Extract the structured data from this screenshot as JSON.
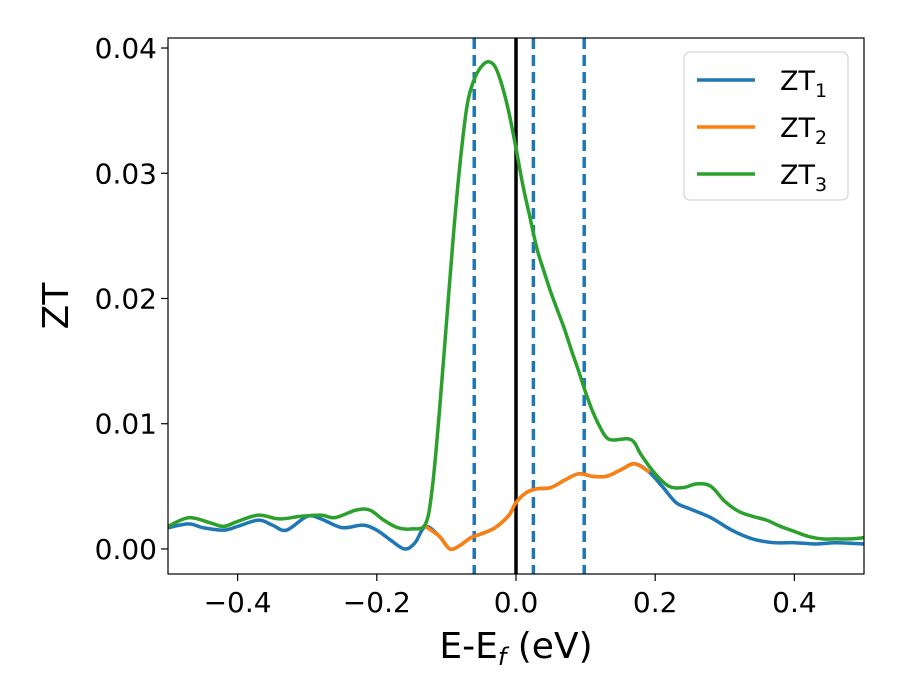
{
  "chart_data": {
    "type": "line",
    "title": "",
    "xlabel": "E-E",
    "xlabel_subscript": "f",
    "xlabel_suffix": " (eV)",
    "ylabel": "ZT",
    "xlim": [
      -0.5,
      0.5
    ],
    "ylim": [
      -0.002,
      0.0408
    ],
    "xticks": [
      -0.4,
      -0.2,
      0.0,
      0.2,
      0.4
    ],
    "xtick_labels": [
      "−0.4",
      "−0.2",
      "0.0",
      "0.2",
      "0.4"
    ],
    "yticks": [
      0.0,
      0.01,
      0.02,
      0.03,
      0.04
    ],
    "ytick_labels": [
      "0.00",
      "0.01",
      "0.02",
      "0.03",
      "0.04"
    ],
    "grid": false,
    "legend_position": "top-right",
    "solid_vline": {
      "x": 0.0,
      "color": "#000000"
    },
    "dashed_vlines": [
      {
        "x": -0.06,
        "color": "#1f77b4"
      },
      {
        "x": 0.025,
        "color": "#1f77b4"
      },
      {
        "x": 0.098,
        "color": "#1f77b4"
      }
    ],
    "series": [
      {
        "name": "ZT",
        "subscript": "1",
        "color": "#1f77b4",
        "points": [
          [
            -0.5,
            0.0017
          ],
          [
            -0.47,
            0.002
          ],
          [
            -0.45,
            0.0017
          ],
          [
            -0.42,
            0.0015
          ],
          [
            -0.4,
            0.0018
          ],
          [
            -0.37,
            0.0023
          ],
          [
            -0.35,
            0.0019
          ],
          [
            -0.33,
            0.0015
          ],
          [
            -0.3,
            0.0026
          ],
          [
            -0.28,
            0.0024
          ],
          [
            -0.25,
            0.0017
          ],
          [
            -0.22,
            0.0019
          ],
          [
            -0.2,
            0.0015
          ],
          [
            -0.18,
            0.0007
          ],
          [
            -0.16,
            0.0
          ],
          [
            -0.145,
            0.0005
          ],
          [
            -0.13,
            0.0018
          ],
          [
            -0.11,
            0.001
          ],
          [
            -0.095,
            0.0
          ],
          [
            -0.08,
            0.0003
          ],
          [
            -0.065,
            0.0009
          ],
          [
            -0.05,
            0.0012
          ],
          [
            -0.03,
            0.0017
          ],
          [
            -0.01,
            0.0027
          ],
          [
            0.0,
            0.0037
          ],
          [
            0.015,
            0.0045
          ],
          [
            0.03,
            0.0048
          ],
          [
            0.05,
            0.0049
          ],
          [
            0.07,
            0.0055
          ],
          [
            0.09,
            0.006
          ],
          [
            0.11,
            0.0058
          ],
          [
            0.13,
            0.0058
          ],
          [
            0.15,
            0.0063
          ],
          [
            0.17,
            0.0068
          ],
          [
            0.19,
            0.0062
          ],
          [
            0.21,
            0.005
          ],
          [
            0.23,
            0.0037
          ],
          [
            0.25,
            0.0032
          ],
          [
            0.28,
            0.0025
          ],
          [
            0.31,
            0.0015
          ],
          [
            0.34,
            0.0008
          ],
          [
            0.37,
            0.0005
          ],
          [
            0.4,
            0.0005
          ],
          [
            0.43,
            0.0004
          ],
          [
            0.46,
            0.0005
          ],
          [
            0.5,
            0.0004
          ]
        ]
      },
      {
        "name": "ZT",
        "subscript": "2",
        "color": "#ff7f0e",
        "points": [
          [
            -0.13,
            0.0018
          ],
          [
            -0.11,
            0.001
          ],
          [
            -0.095,
            0.0
          ],
          [
            -0.08,
            0.0003
          ],
          [
            -0.065,
            0.0009
          ],
          [
            -0.05,
            0.0012
          ],
          [
            -0.03,
            0.0017
          ],
          [
            -0.01,
            0.0027
          ],
          [
            0.0,
            0.0037
          ],
          [
            0.015,
            0.0045
          ],
          [
            0.03,
            0.0048
          ],
          [
            0.05,
            0.0049
          ],
          [
            0.07,
            0.0055
          ],
          [
            0.09,
            0.006
          ],
          [
            0.11,
            0.0058
          ],
          [
            0.13,
            0.0058
          ],
          [
            0.15,
            0.0063
          ],
          [
            0.17,
            0.0068
          ],
          [
            0.19,
            0.0062
          ]
        ]
      },
      {
        "name": "ZT",
        "subscript": "3",
        "color": "#2ca02c",
        "points": [
          [
            -0.5,
            0.0018
          ],
          [
            -0.47,
            0.0025
          ],
          [
            -0.44,
            0.0021
          ],
          [
            -0.42,
            0.0018
          ],
          [
            -0.4,
            0.0022
          ],
          [
            -0.37,
            0.0027
          ],
          [
            -0.34,
            0.0024
          ],
          [
            -0.31,
            0.0026
          ],
          [
            -0.28,
            0.0027
          ],
          [
            -0.26,
            0.0025
          ],
          [
            -0.23,
            0.0031
          ],
          [
            -0.21,
            0.0031
          ],
          [
            -0.19,
            0.0023
          ],
          [
            -0.17,
            0.0017
          ],
          [
            -0.15,
            0.0016
          ],
          [
            -0.13,
            0.002
          ],
          [
            -0.12,
            0.005
          ],
          [
            -0.11,
            0.011
          ],
          [
            -0.1,
            0.018
          ],
          [
            -0.09,
            0.025
          ],
          [
            -0.08,
            0.031
          ],
          [
            -0.07,
            0.0355
          ],
          [
            -0.06,
            0.0375
          ],
          [
            -0.05,
            0.0385
          ],
          [
            -0.04,
            0.0389
          ],
          [
            -0.03,
            0.0385
          ],
          [
            -0.02,
            0.037
          ],
          [
            -0.01,
            0.0348
          ],
          [
            0.0,
            0.032
          ],
          [
            0.01,
            0.029
          ],
          [
            0.02,
            0.0265
          ],
          [
            0.03,
            0.024
          ],
          [
            0.04,
            0.0222
          ],
          [
            0.05,
            0.0205
          ],
          [
            0.06,
            0.019
          ],
          [
            0.07,
            0.0175
          ],
          [
            0.08,
            0.0158
          ],
          [
            0.09,
            0.0142
          ],
          [
            0.1,
            0.0125
          ],
          [
            0.11,
            0.011
          ],
          [
            0.12,
            0.0098
          ],
          [
            0.13,
            0.0089
          ],
          [
            0.14,
            0.0087
          ],
          [
            0.16,
            0.0088
          ],
          [
            0.17,
            0.0085
          ],
          [
            0.18,
            0.0075
          ],
          [
            0.2,
            0.006
          ],
          [
            0.22,
            0.005
          ],
          [
            0.24,
            0.0049
          ],
          [
            0.26,
            0.0052
          ],
          [
            0.28,
            0.005
          ],
          [
            0.3,
            0.0038
          ],
          [
            0.32,
            0.003
          ],
          [
            0.34,
            0.0026
          ],
          [
            0.36,
            0.0023
          ],
          [
            0.38,
            0.0018
          ],
          [
            0.4,
            0.0014
          ],
          [
            0.42,
            0.001
          ],
          [
            0.44,
            0.0008
          ],
          [
            0.46,
            0.0008
          ],
          [
            0.48,
            0.0008
          ],
          [
            0.5,
            0.0009
          ]
        ]
      }
    ]
  }
}
